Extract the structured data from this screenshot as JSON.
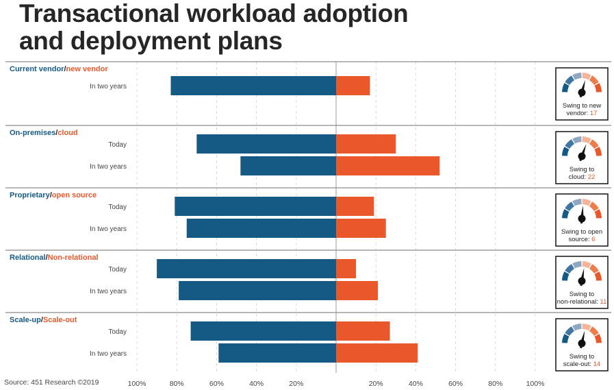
{
  "title_line1": "Transactional workload adoption",
  "title_line2": "and deployment plans",
  "source": "Source: 451 Research ©2019",
  "colors": {
    "left": "#155a84",
    "right": "#e8582a",
    "gauge_left": [
      "#155a84",
      "#3f77a1",
      "#8ea8c3"
    ],
    "gauge_right": [
      "#f4b59b",
      "#ee7d4c",
      "#e8582a"
    ]
  },
  "chart_data": {
    "type": "bar",
    "orientation": "horizontal-diverging",
    "xlim": [
      -100,
      100
    ],
    "ticks": [
      "100%",
      "80%",
      "60%",
      "40%",
      "20%",
      "",
      "20%",
      "40%",
      "60%",
      "80%",
      "100%"
    ],
    "grid": true,
    "groups": [
      {
        "title_left": "Current vendor",
        "title_sep": "/",
        "title_right": "new vendor",
        "rows": [
          {
            "label": "In two years",
            "left": 83,
            "right": 17
          }
        ],
        "gauge": {
          "prefix": "Swing to new vendor:",
          "value": "17",
          "needle": 17
        }
      },
      {
        "title_left": "On-premises",
        "title_sep": "/",
        "title_right": "cloud",
        "rows": [
          {
            "label": "Today",
            "left": 70,
            "right": 30
          },
          {
            "label": "In two years",
            "left": 48,
            "right": 52
          }
        ],
        "gauge": {
          "prefix": "Swing to cloud:",
          "value": "22",
          "needle": 22
        }
      },
      {
        "title_left": "Proprietary",
        "title_sep": "/",
        "title_right": "open source",
        "rows": [
          {
            "label": "Today",
            "left": 81,
            "right": 19
          },
          {
            "label": "In two years",
            "left": 75,
            "right": 25
          }
        ],
        "gauge": {
          "prefix": "Swing to open source:",
          "value": "6",
          "needle": 6
        }
      },
      {
        "title_left": "Relational",
        "title_sep": "/",
        "title_right": "Non-relational",
        "rows": [
          {
            "label": "Today",
            "left": 90,
            "right": 10
          },
          {
            "label": "In two years",
            "left": 79,
            "right": 21
          }
        ],
        "gauge": {
          "prefix": "Swing to non-relational:",
          "value": "11",
          "needle": 11
        }
      },
      {
        "title_left": "Scale-up",
        "title_sep": "/",
        "title_right": "Scale-out",
        "rows": [
          {
            "label": "Today",
            "left": 73,
            "right": 27
          },
          {
            "label": "In two years",
            "left": 59,
            "right": 41
          }
        ],
        "gauge": {
          "prefix": "Swing to scale-out:",
          "value": "14",
          "needle": 14
        }
      }
    ]
  }
}
